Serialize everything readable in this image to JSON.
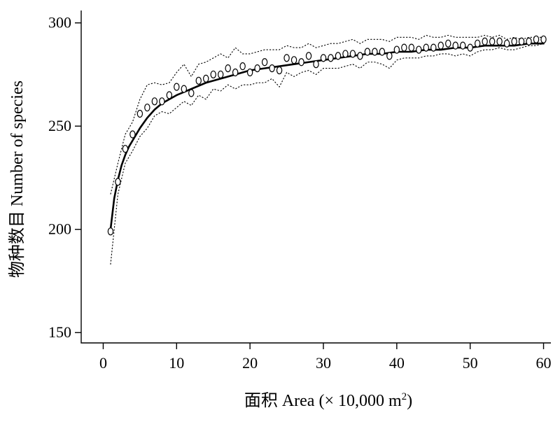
{
  "chart_data": {
    "type": "scatter",
    "title": "",
    "xlabel": "面积 Area (× 10,000 m²)",
    "xlabel_parts": {
      "main": "面积 Area (× 10,000 m",
      "sup": "2",
      "close": ")"
    },
    "ylabel": "物种数目 Number of species",
    "xlim": [
      -3,
      61
    ],
    "ylim": [
      145,
      306
    ],
    "xticks": [
      0,
      10,
      20,
      30,
      40,
      50,
      60
    ],
    "yticks": [
      150,
      200,
      250,
      300
    ],
    "xtick_labels": [
      "0",
      "10",
      "20",
      "30",
      "40",
      "50",
      "60"
    ],
    "ytick_labels": [
      "150",
      "200",
      "250",
      "300"
    ],
    "grid": false,
    "legend": "none",
    "colors": {
      "points": "#000000",
      "fit": "#000000",
      "bounds": "#000000"
    },
    "series": [
      {
        "kind": "points",
        "marker": "open-circle",
        "x": [
          1,
          2,
          3,
          4,
          5,
          6,
          7,
          8,
          9,
          10,
          11,
          12,
          13,
          14,
          15,
          16,
          17,
          18,
          19,
          20,
          21,
          22,
          23,
          24,
          25,
          26,
          27,
          28,
          29,
          30,
          31,
          32,
          33,
          34,
          35,
          36,
          37,
          38,
          39,
          40,
          41,
          42,
          43,
          44,
          45,
          46,
          47,
          48,
          49,
          50,
          51,
          52,
          53,
          54,
          55,
          56,
          57,
          58,
          59,
          60
        ],
        "y": [
          199,
          223,
          239,
          246,
          256,
          259,
          262,
          262,
          265,
          269,
          268,
          266,
          272,
          273,
          275,
          275,
          278,
          276,
          279,
          276,
          278,
          281,
          278,
          277,
          283,
          282,
          281,
          284,
          280,
          283,
          283,
          284,
          285,
          285,
          284,
          286,
          286,
          286,
          284,
          287,
          288,
          288,
          287,
          288,
          288,
          289,
          290,
          289,
          289,
          288,
          290,
          291,
          291,
          291,
          290,
          291,
          291,
          291,
          292,
          292
        ]
      },
      {
        "kind": "fit-line",
        "x": [
          1,
          1.5,
          2,
          2.5,
          3,
          3.5,
          4,
          5,
          6,
          7,
          8,
          9,
          10,
          12,
          14,
          16,
          18,
          20,
          22,
          24,
          26,
          28,
          30,
          32,
          34,
          36,
          38,
          40,
          42,
          44,
          46,
          48,
          50,
          52,
          54,
          56,
          58,
          60
        ],
        "y": [
          200,
          215,
          224,
          231,
          236,
          240,
          243,
          249,
          254,
          258,
          261,
          263,
          265,
          268,
          271,
          273,
          275,
          277,
          278,
          279,
          280,
          281,
          282,
          283,
          284,
          285,
          285,
          286,
          286,
          287,
          287,
          288,
          288,
          289,
          289,
          289,
          290,
          290
        ]
      },
      {
        "kind": "upper-bound",
        "x": [
          1,
          2,
          3,
          4,
          5,
          6,
          7,
          8,
          9,
          10,
          11,
          12,
          13,
          14,
          15,
          16,
          17,
          18,
          19,
          20,
          21,
          22,
          23,
          24,
          25,
          26,
          27,
          28,
          29,
          30,
          31,
          32,
          33,
          34,
          35,
          36,
          37,
          38,
          39,
          40,
          41,
          42,
          43,
          44,
          45,
          46,
          47,
          48,
          49,
          50,
          51,
          52,
          53,
          54,
          55,
          56,
          57,
          58,
          59,
          60
        ],
        "y": [
          217,
          232,
          246,
          252,
          263,
          270,
          271,
          270,
          271,
          276,
          280,
          274,
          280,
          281,
          283,
          285,
          283,
          288,
          285,
          285,
          286,
          287,
          287,
          287,
          289,
          288,
          288,
          290,
          288,
          289,
          290,
          290,
          291,
          292,
          290,
          292,
          292,
          292,
          291,
          293,
          293,
          293,
          292,
          294,
          293,
          293,
          294,
          293,
          293,
          293,
          293,
          294,
          293,
          294,
          292,
          293,
          292,
          293,
          293,
          293
        ]
      },
      {
        "kind": "lower-bound",
        "x": [
          1,
          2,
          3,
          4,
          5,
          6,
          7,
          8,
          9,
          10,
          11,
          12,
          13,
          14,
          15,
          16,
          17,
          18,
          19,
          20,
          21,
          22,
          23,
          24,
          25,
          26,
          27,
          28,
          29,
          30,
          31,
          32,
          33,
          34,
          35,
          36,
          37,
          38,
          39,
          40,
          41,
          42,
          43,
          44,
          45,
          46,
          47,
          48,
          49,
          50,
          51,
          52,
          53,
          54,
          55,
          56,
          57,
          58,
          59,
          60
        ],
        "y": [
          183,
          217,
          232,
          238,
          245,
          249,
          255,
          257,
          256,
          259,
          262,
          260,
          265,
          263,
          268,
          267,
          270,
          268,
          270,
          270,
          271,
          271,
          273,
          269,
          276,
          274,
          276,
          277,
          275,
          278,
          278,
          278,
          279,
          280,
          278,
          281,
          281,
          280,
          278,
          282,
          283,
          283,
          283,
          284,
          284,
          285,
          285,
          284,
          285,
          284,
          286,
          287,
          287,
          288,
          287,
          287,
          288,
          289,
          289,
          290
        ]
      }
    ]
  }
}
